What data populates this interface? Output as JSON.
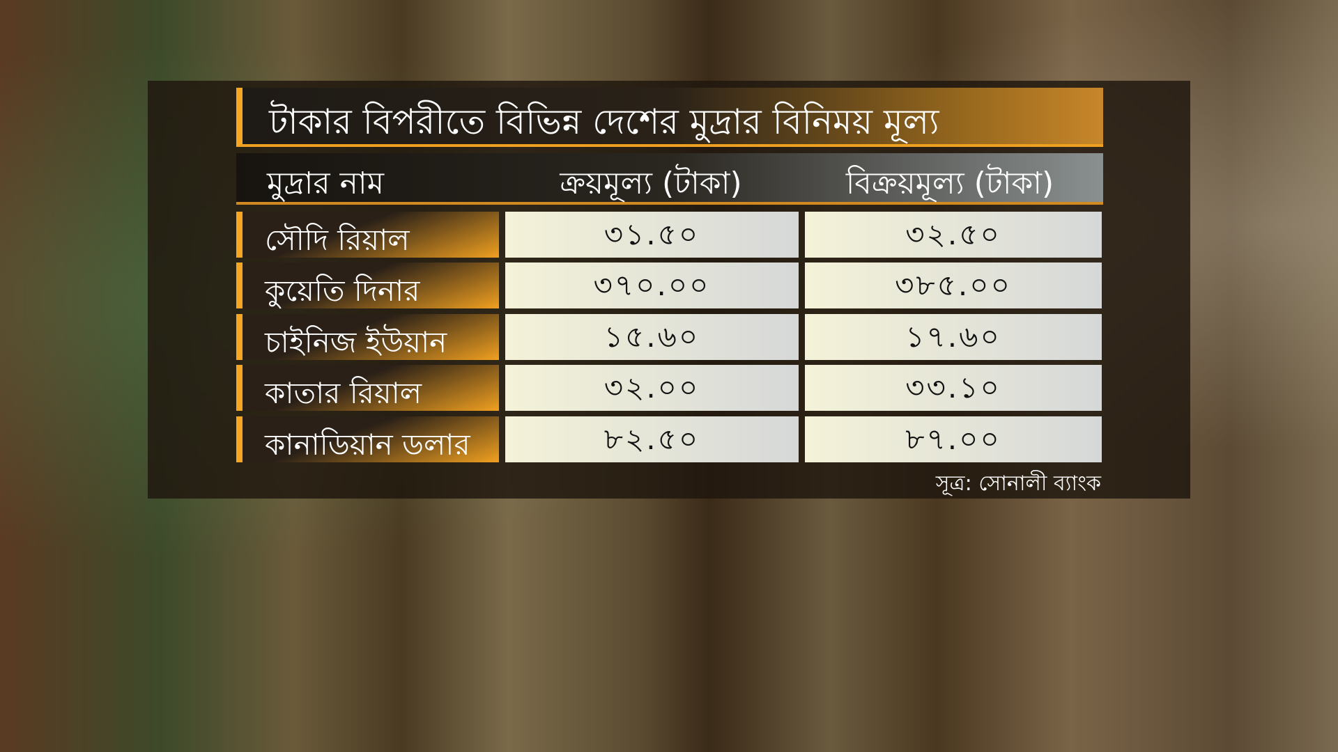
{
  "title": "টাকার বিপরীতে বিভিন্ন দেশের মুদ্রার বিনিময় মূল্য",
  "table": {
    "headers": [
      "মুদ্রার নাম",
      "ক্রয়মূল্য (টাকা)",
      "বিক্রয়মূল্য (টাকা)"
    ],
    "rows": [
      {
        "name": "সৌদি রিয়াল",
        "buy": "৩১.৫০",
        "sell": "৩২.৫০"
      },
      {
        "name": "কুয়েতি দিনার",
        "buy": "৩৭০.০০",
        "sell": "৩৮৫.০০"
      },
      {
        "name": "চাইনিজ ইউয়ান",
        "buy": "১৫.৬০",
        "sell": "১৭.৬০"
      },
      {
        "name": "কাতার রিয়াল",
        "buy": "৩২.০০",
        "sell": "৩৩.১০"
      },
      {
        "name": "কানাডিয়ান ডলার",
        "buy": "৮২.৫০",
        "sell": "৮৭.০০"
      }
    ]
  },
  "source": "সূত্র:  সোনালী ব্যাংক",
  "colors": {
    "accent": "#f5a623",
    "value_cell": "#f4f2d8",
    "panel": "#1e160e"
  }
}
